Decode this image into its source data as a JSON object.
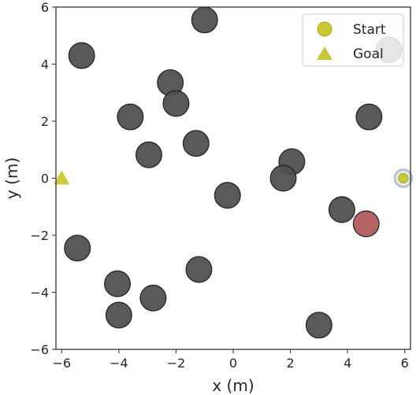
{
  "chart_data": {
    "type": "scatter",
    "title": "",
    "xlabel": "x (m)",
    "ylabel": "y (m)",
    "xlim": [
      -6.2,
      6.2
    ],
    "ylim": [
      -6,
      6
    ],
    "xticks": [
      -6,
      -4,
      -2,
      0,
      2,
      4,
      6
    ],
    "yticks": [
      -6,
      -4,
      -2,
      0,
      2,
      4,
      6
    ],
    "grid": false,
    "legend": {
      "placement": "top-right",
      "entries": [
        {
          "label": "Start",
          "marker": "circle",
          "color": "#c8c832"
        },
        {
          "label": "Goal",
          "marker": "triangle",
          "color": "#c8c832"
        }
      ]
    },
    "colors": {
      "obstacle": "#505050",
      "agent": "#b05a5a",
      "marker": "#c8c832",
      "start_halo": "#b8c4d0"
    },
    "obstacles": [
      {
        "x": -1.0,
        "y": 5.55
      },
      {
        "x": -5.3,
        "y": 4.3
      },
      {
        "x": -2.2,
        "y": 3.35
      },
      {
        "x": -2.0,
        "y": 2.62
      },
      {
        "x": -3.6,
        "y": 2.15
      },
      {
        "x": -1.3,
        "y": 1.22
      },
      {
        "x": -2.95,
        "y": 0.82
      },
      {
        "x": 2.05,
        "y": 0.58
      },
      {
        "x": 1.75,
        "y": 0.0
      },
      {
        "x": -0.2,
        "y": -0.6
      },
      {
        "x": 3.8,
        "y": -1.1
      },
      {
        "x": 4.75,
        "y": 2.15
      },
      {
        "x": 5.45,
        "y": 4.5
      },
      {
        "x": -5.45,
        "y": -2.45
      },
      {
        "x": -1.2,
        "y": -3.2
      },
      {
        "x": -4.05,
        "y": -3.7
      },
      {
        "x": -2.8,
        "y": -4.2
      },
      {
        "x": -4.0,
        "y": -4.8
      },
      {
        "x": 3.0,
        "y": -5.15
      }
    ],
    "agent": {
      "x": 4.65,
      "y": -1.6
    },
    "start": {
      "x": 5.95,
      "y": 0.0
    },
    "goal": {
      "x": -6.0,
      "y": 0.0
    }
  }
}
